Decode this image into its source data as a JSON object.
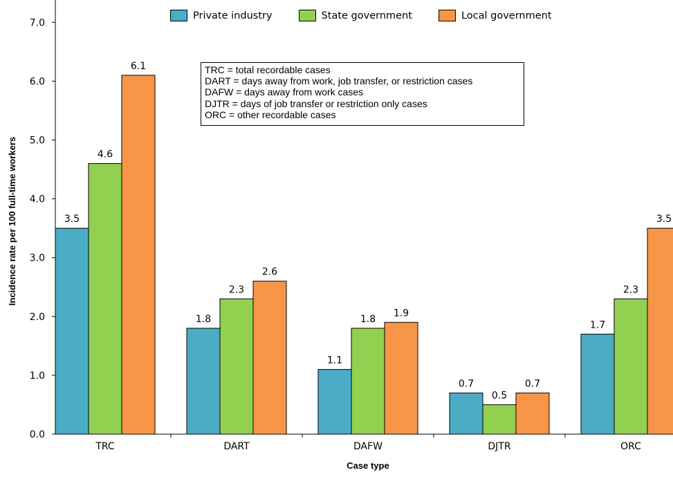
{
  "chart_data": {
    "type": "bar",
    "xlabel": "Case type",
    "ylabel": "Incidence rate per 100 full-time workers",
    "ylim": [
      0,
      7.3
    ],
    "yticks": [
      "0.0",
      "1.0",
      "2.0",
      "3.0",
      "4.0",
      "5.0",
      "6.0",
      "7.0"
    ],
    "categories": [
      "TRC",
      "DART",
      "DAFW",
      "DJTR",
      "ORC"
    ],
    "series": [
      {
        "name": "Private industry",
        "color": "#4bacc6",
        "values": [
          3.5,
          1.8,
          1.1,
          0.7,
          1.7
        ],
        "labels": [
          "3.5",
          "1.8",
          "1.1",
          "0.7",
          "1.7"
        ]
      },
      {
        "name": "State government",
        "color": "#92d050",
        "values": [
          4.6,
          2.3,
          1.8,
          0.5,
          2.3
        ],
        "labels": [
          "4.6",
          "2.3",
          "1.8",
          "0.5",
          "2.3"
        ]
      },
      {
        "name": "Local government",
        "color": "#f79646",
        "values": [
          6.1,
          2.6,
          1.9,
          0.7,
          3.5
        ],
        "labels": [
          "6.1",
          "2.6",
          "1.9",
          "0.7",
          "3.5"
        ]
      }
    ],
    "legend": "top",
    "grid": false,
    "annotation": [
      "TRC = total recordable cases",
      "DART = days away from work, job transfer, or restriction cases",
      "DAFW = days away from work cases",
      "DJTR = days of job transfer or restriction only cases",
      "ORC = other recordable cases"
    ]
  }
}
